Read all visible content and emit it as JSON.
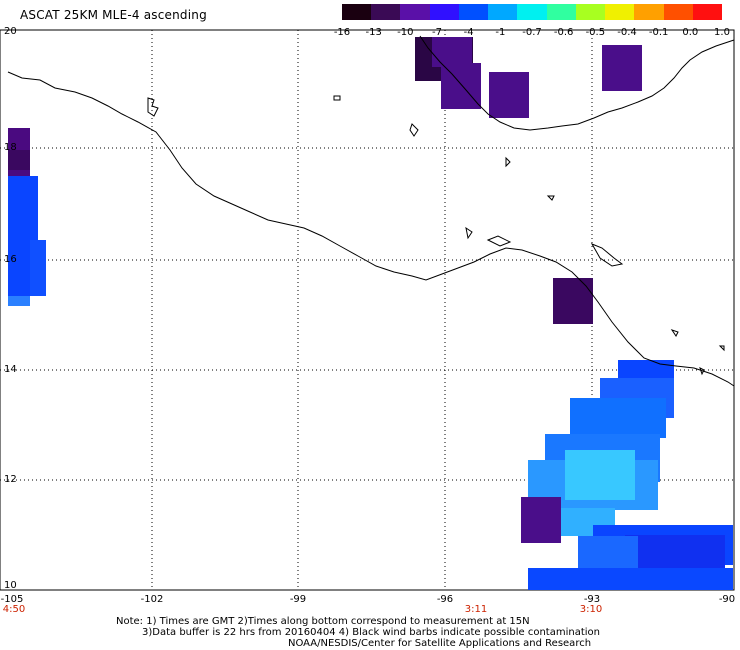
{
  "title": "ASCAT 25KM MLE-4 ascending",
  "colorbar": {
    "labels": [
      "-16",
      "-13",
      "-10",
      "-7",
      "-4",
      "-1",
      "-0.7",
      "-0.6",
      "-0.5",
      "-0.4",
      "-0.1",
      "0.0",
      "1.0"
    ],
    "colors": [
      "#1a0010",
      "#3a0a55",
      "#5a10a8",
      "#3010ff",
      "#0050ff",
      "#00a8ff",
      "#00f0f0",
      "#30ffa0",
      "#a8ff20",
      "#f0f000",
      "#ffa000",
      "#ff5000",
      "#ff1010"
    ]
  },
  "lat_labels": [
    "20",
    "18",
    "16",
    "14",
    "12",
    "10"
  ],
  "lon_labels": [
    "-105",
    "-102",
    "-99",
    "-96",
    "-93",
    "-90"
  ],
  "time_labels": [
    "4:50",
    "3:11",
    "3:10"
  ],
  "notes": [
    "Note: 1) Times are GMT 2)Times along bottom correspond to measurement at 15N",
    "3)Data buffer is 22 hrs from 20160404 4) Black wind barbs indicate possible contamination",
    "NOAA/NESDIS/Center for Satellite Applications and Research"
  ],
  "map_extent": {
    "lon": [
      -105,
      -90
    ],
    "lat": [
      10,
      20
    ]
  },
  "colors": {
    "coast": "#000000",
    "grid": "#000000",
    "time_label": "#cc2200"
  }
}
